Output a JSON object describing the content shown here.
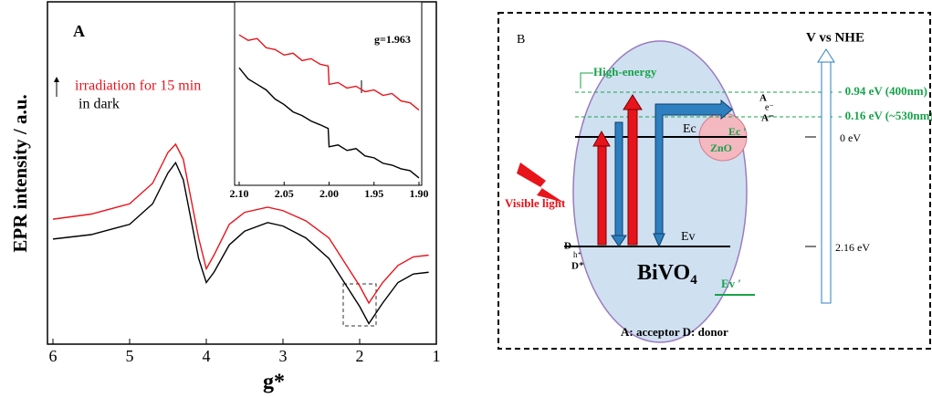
{
  "chart_data": [
    {
      "type": "line",
      "label": "A",
      "xlabel": "g*",
      "ylabel": "EPR intensity / a.u.",
      "x": [
        6,
        5.5,
        5,
        4.7,
        4.5,
        4.4,
        4.3,
        4.1,
        4.0,
        3.9,
        3.7,
        3.5,
        3.2,
        3,
        2.7,
        2.4,
        2.2,
        2.0,
        1.88,
        1.7,
        1.5,
        1.3,
        1.1
      ],
      "series": [
        {
          "name": "irradiation for 15 min",
          "color": "#e8141c",
          "values": [
            36.5,
            38,
            41,
            47,
            56,
            58.4,
            54,
            31,
            22,
            26,
            35,
            38.5,
            40,
            39,
            36,
            31,
            24,
            17,
            12,
            18,
            23,
            25.5,
            26
          ]
        },
        {
          "name": "in dark",
          "color": "#000000",
          "values": [
            30.7,
            32,
            35,
            41,
            50,
            53,
            48,
            25,
            18,
            21,
            29,
            33,
            35.5,
            34.5,
            31,
            25,
            18,
            11,
            6,
            12,
            18,
            20.5,
            21
          ]
        }
      ],
      "xlim": [
        6,
        1
      ],
      "xticks": [
        6,
        5,
        4,
        3,
        2,
        1
      ],
      "ylim": [
        0,
        100
      ]
    },
    {
      "type": "line",
      "annotation": "g=1.963",
      "x": [
        2.1,
        2.09,
        2.08,
        2.07,
        2.06,
        2.05,
        2.04,
        2.03,
        2.02,
        2.01,
        2.001,
        2.0,
        1.99,
        1.98,
        1.97,
        1.96,
        1.95,
        1.94,
        1.93,
        1.92,
        1.91,
        1.9
      ],
      "series": [
        {
          "name": null,
          "color": "#e8141c",
          "values": [
            82,
            79,
            80,
            75,
            74,
            71,
            72,
            68,
            69,
            66,
            65,
            55,
            56,
            53,
            54,
            51,
            52,
            49,
            50,
            46,
            45,
            41
          ]
        },
        {
          "name": null,
          "color": "#000000",
          "values": [
            64,
            58,
            55,
            52,
            47,
            44,
            40,
            38,
            35,
            33,
            31,
            21,
            22,
            19,
            20,
            16,
            15,
            12,
            11,
            9,
            8,
            4
          ]
        }
      ],
      "xlim": [
        2.1,
        1.9
      ],
      "xticks": [
        {
          "value": 2.1,
          "label": "2.10"
        },
        2.05,
        {
          "value": 2.0,
          "label": "2.00"
        },
        1.95,
        {
          "value": 1.9,
          "label": "1.90"
        }
      ],
      "ylim": [
        0,
        100
      ]
    }
  ],
  "diagram": {
    "panel": "B",
    "axis_title": "V vs NHE",
    "high_energy": "High-energy",
    "ec": "Ec",
    "ec_prime": "Ec ′",
    "zno": "ZnO",
    "acceptor": "A",
    "electron": "e⁻",
    "acceptor_ion": "A⁻",
    "level_1": "- 0.94 eV (400nm)",
    "level_2": "- 0.16 eV (~530nm)",
    "zero": "0 eV",
    "ev_value": "2.16 eV",
    "light": "Visible light",
    "ev": "Ev",
    "ev_prime": "Ev ′",
    "material": "BiVO",
    "material_sub": "4",
    "donor": "D",
    "hole": "h⁺",
    "donor_ion": "D⁺",
    "caption": "A: acceptor  D: donor"
  }
}
